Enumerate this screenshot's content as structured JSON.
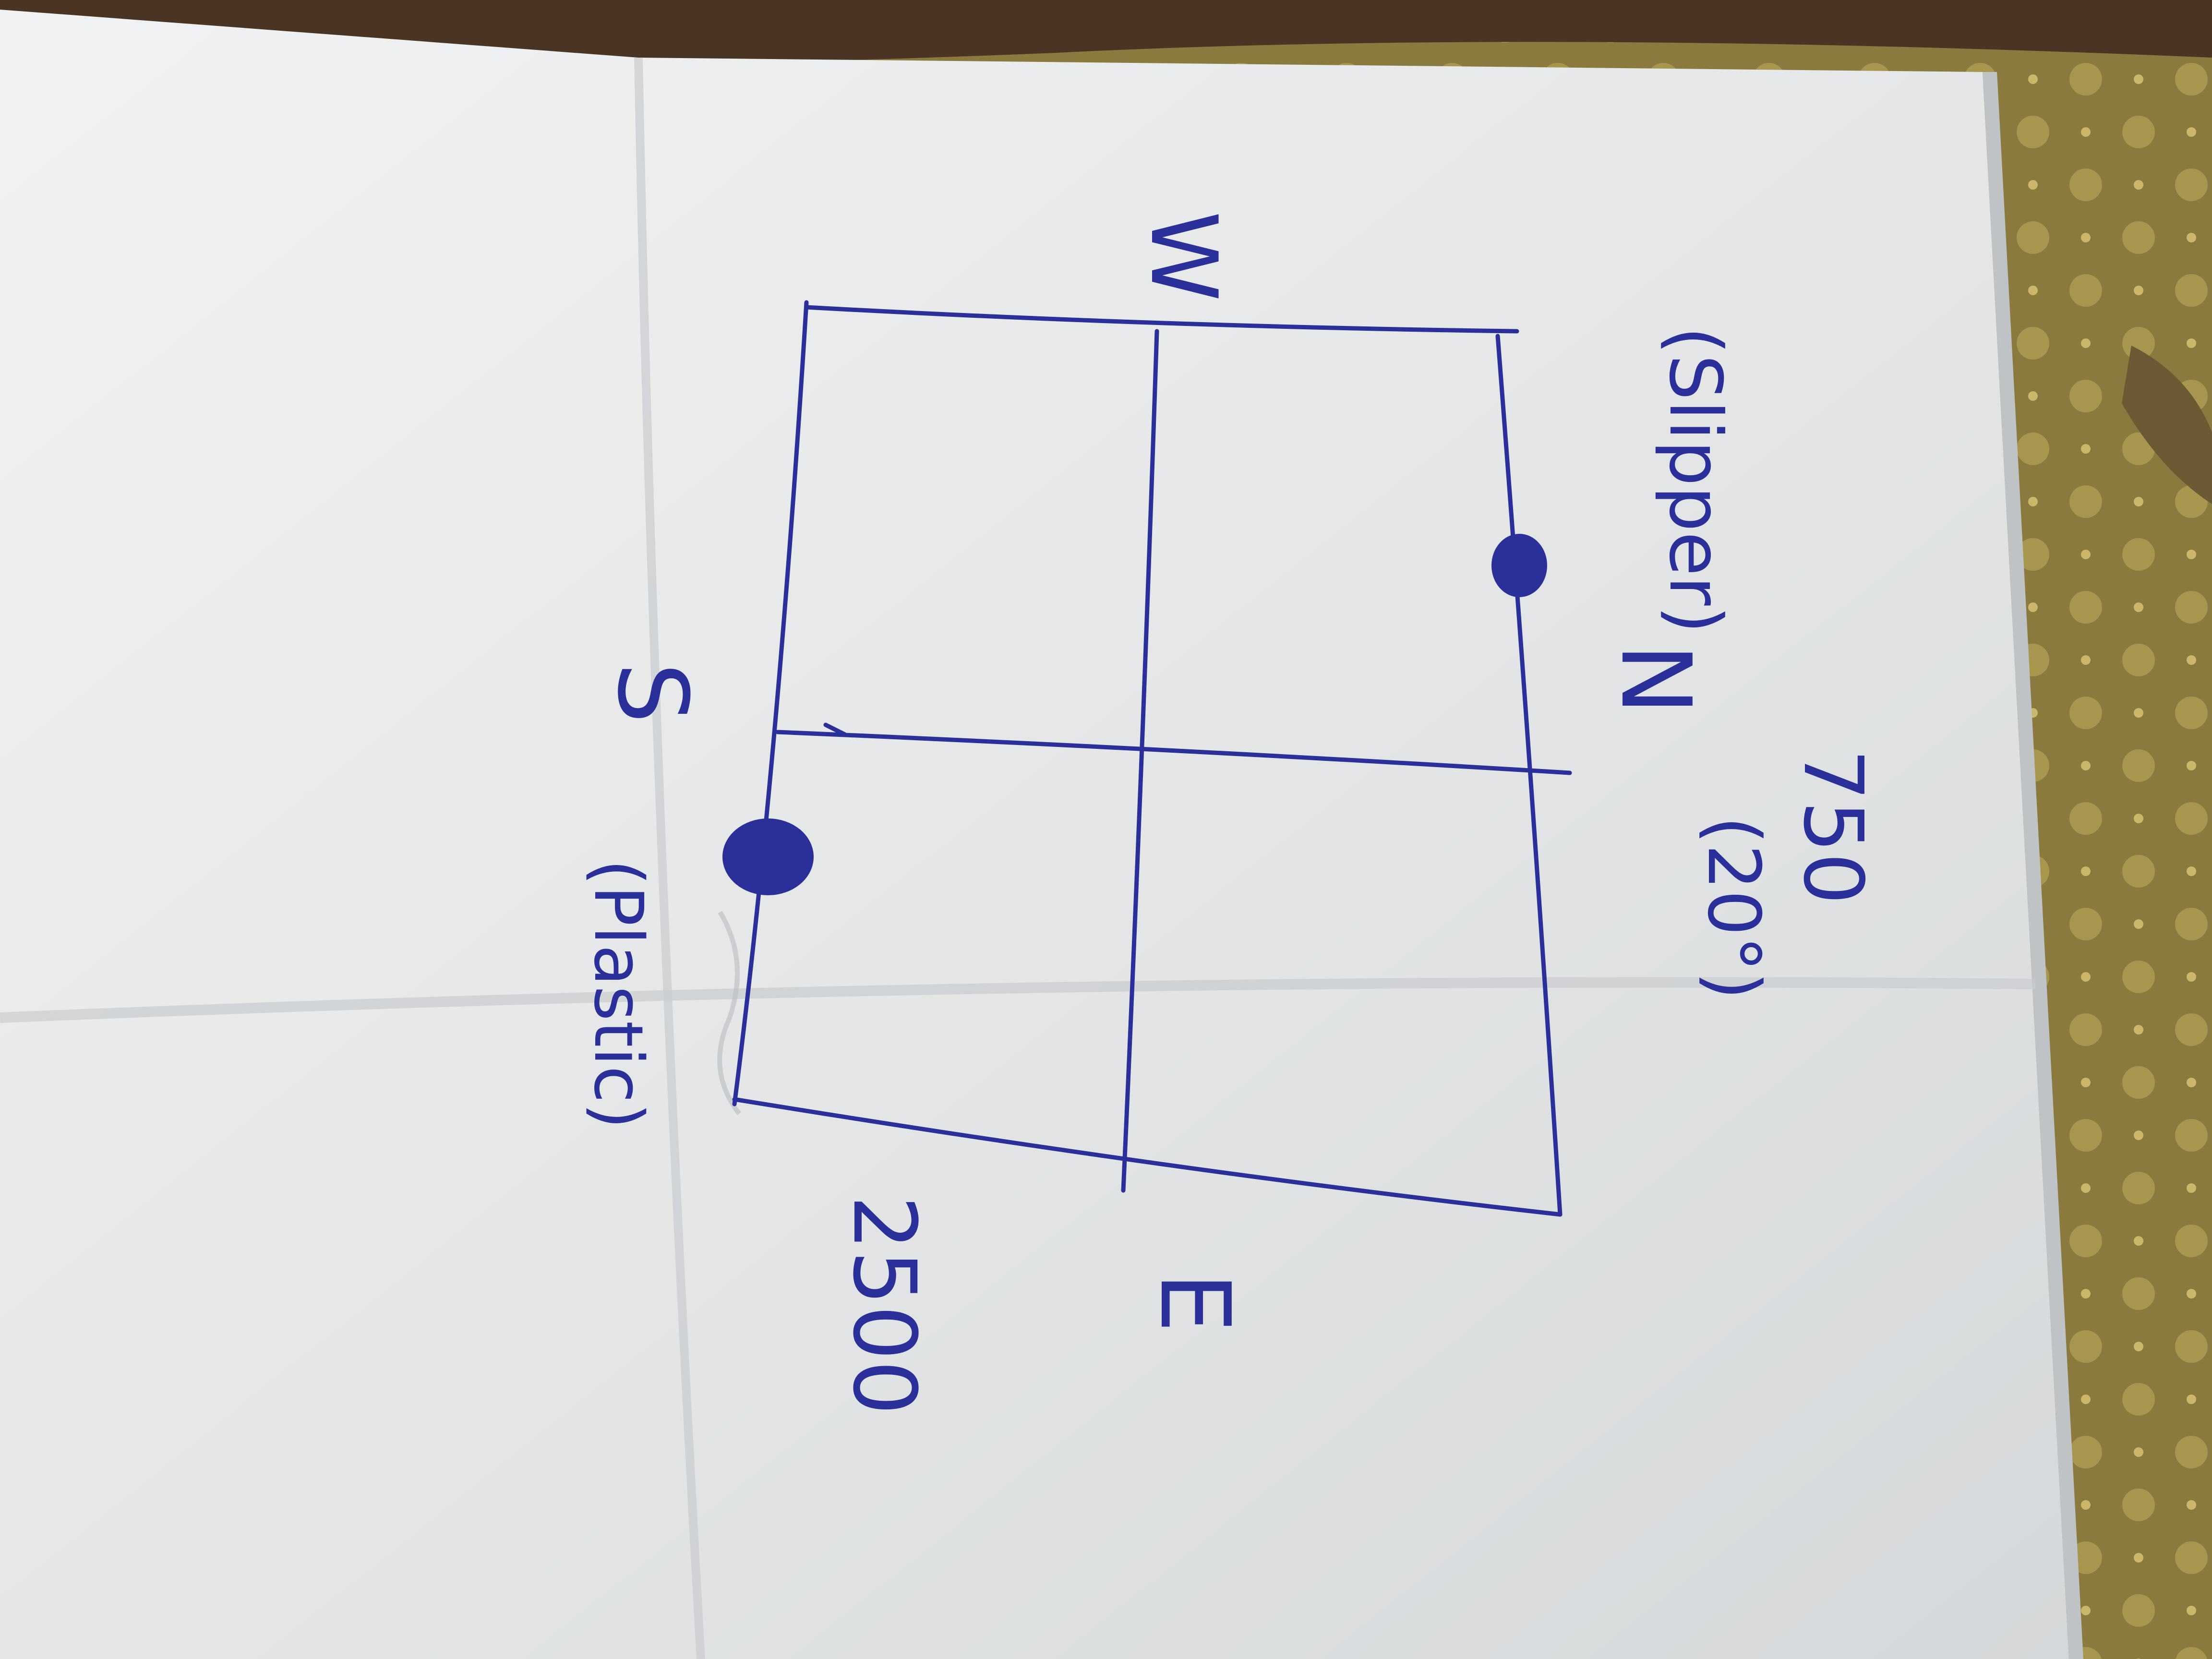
{
  "photo": {
    "subject": "folded-paper-sketch",
    "colors": {
      "table_surface": "#8a7a3e",
      "table_pattern": "#c9b86a",
      "dark_fabric": "#4a3424",
      "paper": "#e9ebec",
      "paper_shadow": "#c9cccf",
      "ink": "#2b2f9a"
    }
  },
  "sketch": {
    "labels": {
      "west": "W",
      "north": "N",
      "south": "S",
      "east": "E"
    },
    "annotations": {
      "top_value": "750",
      "top_angle": "(20°)",
      "top_material": "(Slipper)",
      "bottom_value": "2500",
      "bottom_material": "(Plastic)"
    },
    "points": [
      {
        "name": "slipper-dot"
      },
      {
        "name": "plastic-dot"
      }
    ]
  }
}
